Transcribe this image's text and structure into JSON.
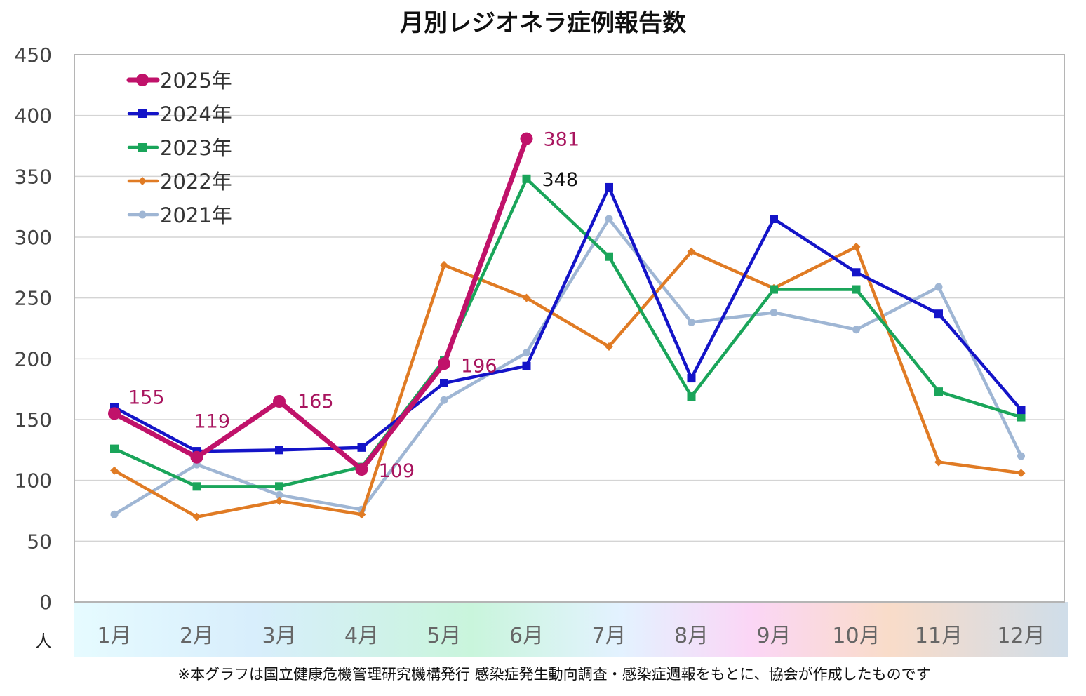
{
  "chart_data": {
    "type": "line",
    "title": "月別レジオネラ症例報告数",
    "unit_label": "人",
    "categories": [
      "1月",
      "2月",
      "3月",
      "4月",
      "5月",
      "6月",
      "7月",
      "8月",
      "9月",
      "10月",
      "11月",
      "12月"
    ],
    "ylim": [
      0,
      450
    ],
    "yticks": [
      0,
      50,
      100,
      150,
      200,
      250,
      300,
      350,
      400,
      450
    ],
    "grid": true,
    "legend_position": "top-left",
    "series": [
      {
        "name": "2025年",
        "color": "#c0126a",
        "marker": "circle",
        "values": [
          155,
          119,
          165,
          109,
          196,
          381,
          null,
          null,
          null,
          null,
          null,
          null
        ]
      },
      {
        "name": "2024年",
        "color": "#1414c8",
        "marker": "square",
        "values": [
          160,
          124,
          125,
          127,
          180,
          194,
          341,
          184,
          315,
          271,
          237,
          158
        ]
      },
      {
        "name": "2023年",
        "color": "#1aa55a",
        "marker": "square",
        "values": [
          126,
          95,
          95,
          111,
          199,
          348,
          284,
          169,
          257,
          257,
          173,
          152
        ]
      },
      {
        "name": "2022年",
        "color": "#e07b24",
        "marker": "diamond",
        "values": [
          108,
          70,
          83,
          72,
          277,
          250,
          210,
          288,
          258,
          292,
          115,
          106
        ]
      },
      {
        "name": "2021年",
        "color": "#9fb6d4",
        "marker": "circle-small",
        "values": [
          72,
          113,
          88,
          76,
          166,
          205,
          315,
          230,
          238,
          224,
          259,
          120
        ]
      }
    ],
    "data_labels": [
      {
        "series": 0,
        "index": 0,
        "text": "155",
        "color": "#a8145e"
      },
      {
        "series": 0,
        "index": 1,
        "text": "119",
        "color": "#a8145e"
      },
      {
        "series": 0,
        "index": 2,
        "text": "165",
        "color": "#a8145e"
      },
      {
        "series": 0,
        "index": 3,
        "text": "109",
        "color": "#a8145e"
      },
      {
        "series": 0,
        "index": 4,
        "text": "196",
        "color": "#a8145e"
      },
      {
        "series": 0,
        "index": 5,
        "text": "381",
        "color": "#a8145e"
      },
      {
        "series": 2,
        "index": 5,
        "text": "348",
        "color": "#111111"
      }
    ],
    "footnote": "※本グラフは国立健康危機管理研究機構発行 感染症発生動向調査・感染症週報をもとに、協会が作成したものです"
  }
}
